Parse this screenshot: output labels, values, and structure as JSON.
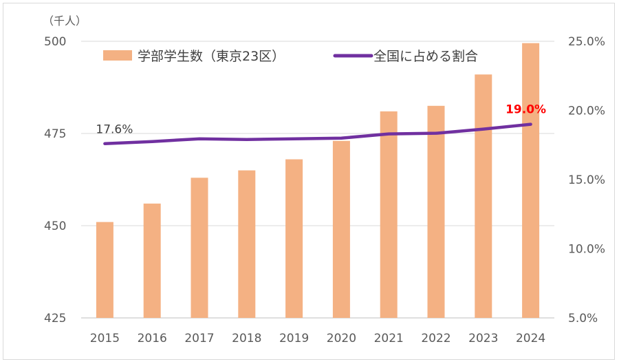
{
  "chart_data": {
    "type": "bar",
    "categories": [
      "2015",
      "2016",
      "2017",
      "2018",
      "2019",
      "2020",
      "2021",
      "2022",
      "2023",
      "2024"
    ],
    "y_unit_label": "（千人）",
    "ylim": [
      425,
      500
    ],
    "yticks": [
      "425",
      "450",
      "475",
      "500"
    ],
    "y2lim": [
      5.0,
      25.0
    ],
    "y2ticks": [
      "5.0%",
      "10.0%",
      "15.0%",
      "20.0%",
      "25.0%"
    ],
    "series": [
      {
        "name": "学部学生数（東京23区）",
        "type": "bar",
        "axis": "left",
        "color": "#f4b183",
        "values": [
          451,
          456,
          463,
          465,
          468,
          473,
          481,
          482.5,
          491,
          499.5
        ]
      },
      {
        "name": "全国に占める割合",
        "type": "line",
        "axis": "right",
        "color": "#7030a0",
        "values": [
          17.6,
          17.75,
          17.95,
          17.9,
          17.95,
          18.0,
          18.3,
          18.35,
          18.65,
          19.0
        ]
      }
    ],
    "data_labels": {
      "first": "17.6%",
      "last": "19.0%",
      "last_color": "#ff0000"
    },
    "grid": true,
    "legend_position": "top"
  }
}
